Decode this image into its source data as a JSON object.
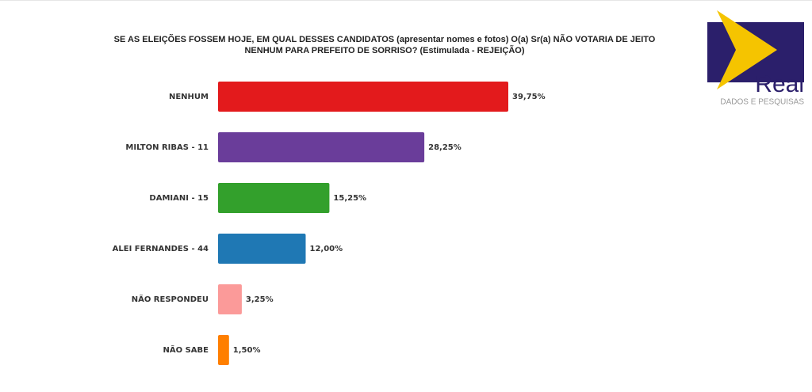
{
  "chart_data": {
    "type": "bar",
    "title": "SE AS ELEIÇÕES FOSSEM HOJE, EM QUAL DESSES CANDIDATOS (apresentar nomes e fotos) O(a) Sr(a) NÃO VOTARIA DE JEITO NENHUM PARA PREFEITO DE SORRISO? (Estimulada - REJEIÇÃO)",
    "categories": [
      "NENHUM",
      "MILTON RIBAS - 11",
      "DAMIANI - 15",
      "ALEI FERNANDES - 44",
      "NÃO RESPONDEU",
      "NÃO SABE"
    ],
    "values": [
      39.75,
      28.25,
      15.25,
      12.0,
      3.25,
      1.5
    ],
    "value_labels": [
      "39,75%",
      "28,25%",
      "15,25%",
      "12,00%",
      "3,25%",
      "1,50%"
    ],
    "colors": [
      "#e31a1c",
      "#6a3d9a",
      "#33a02c",
      "#1f78b4",
      "#fb9a99",
      "#ff7f00"
    ]
  },
  "logo": {
    "name": "Real",
    "tagline": "DADOS E PESQUISAS"
  }
}
